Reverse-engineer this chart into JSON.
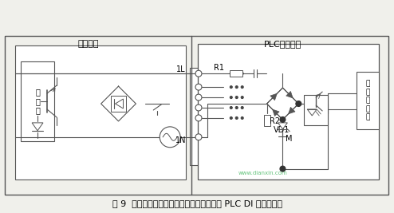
{
  "title": "图 9  交流两线制开关量传感器与交流输入型 PLC DI 模块的接线",
  "bg_color": "#f0f0eb",
  "line_color": "#555555",
  "dark_line": "#333333",
  "label_waijie": "外部接线",
  "label_plc": "PLC内部接线",
  "label_1L": "1L",
  "label_1N": "1N",
  "label_R1": "R1",
  "label_R2": "R2",
  "label_VD1": "VD1",
  "label_M": "M",
  "label_zhudianlu": "主\n电\n路",
  "label_system": "系\n统\n处\n理\n器",
  "watermark": "www.dianxin.com",
  "wm_color": "#22aa44",
  "title_fontsize": 9
}
